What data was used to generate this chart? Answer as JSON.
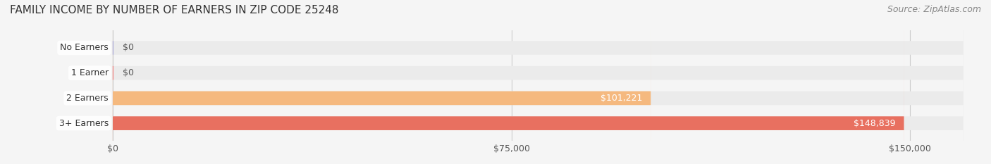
{
  "title": "FAMILY INCOME BY NUMBER OF EARNERS IN ZIP CODE 25248",
  "source": "Source: ZipAtlas.com",
  "categories": [
    "No Earners",
    "1 Earner",
    "2 Earners",
    "3+ Earners"
  ],
  "values": [
    0,
    0,
    101221,
    148839
  ],
  "bar_colors": [
    "#a8a8d8",
    "#f08080",
    "#f5b97f",
    "#e87060"
  ],
  "label_colors": [
    "#555555",
    "#555555",
    "#ffffff",
    "#ffffff"
  ],
  "bar_labels": [
    "$0",
    "$0",
    "$101,221",
    "$148,839"
  ],
  "x_ticks": [
    0,
    75000,
    150000
  ],
  "x_tick_labels": [
    "$0",
    "$75,000",
    "$150,000"
  ],
  "xlim": [
    0,
    160000
  ],
  "background_color": "#f5f5f5",
  "bar_background_color": "#ebebeb",
  "title_fontsize": 11,
  "source_fontsize": 9,
  "bar_height": 0.55,
  "figsize": [
    14.06,
    2.33
  ],
  "dpi": 100
}
